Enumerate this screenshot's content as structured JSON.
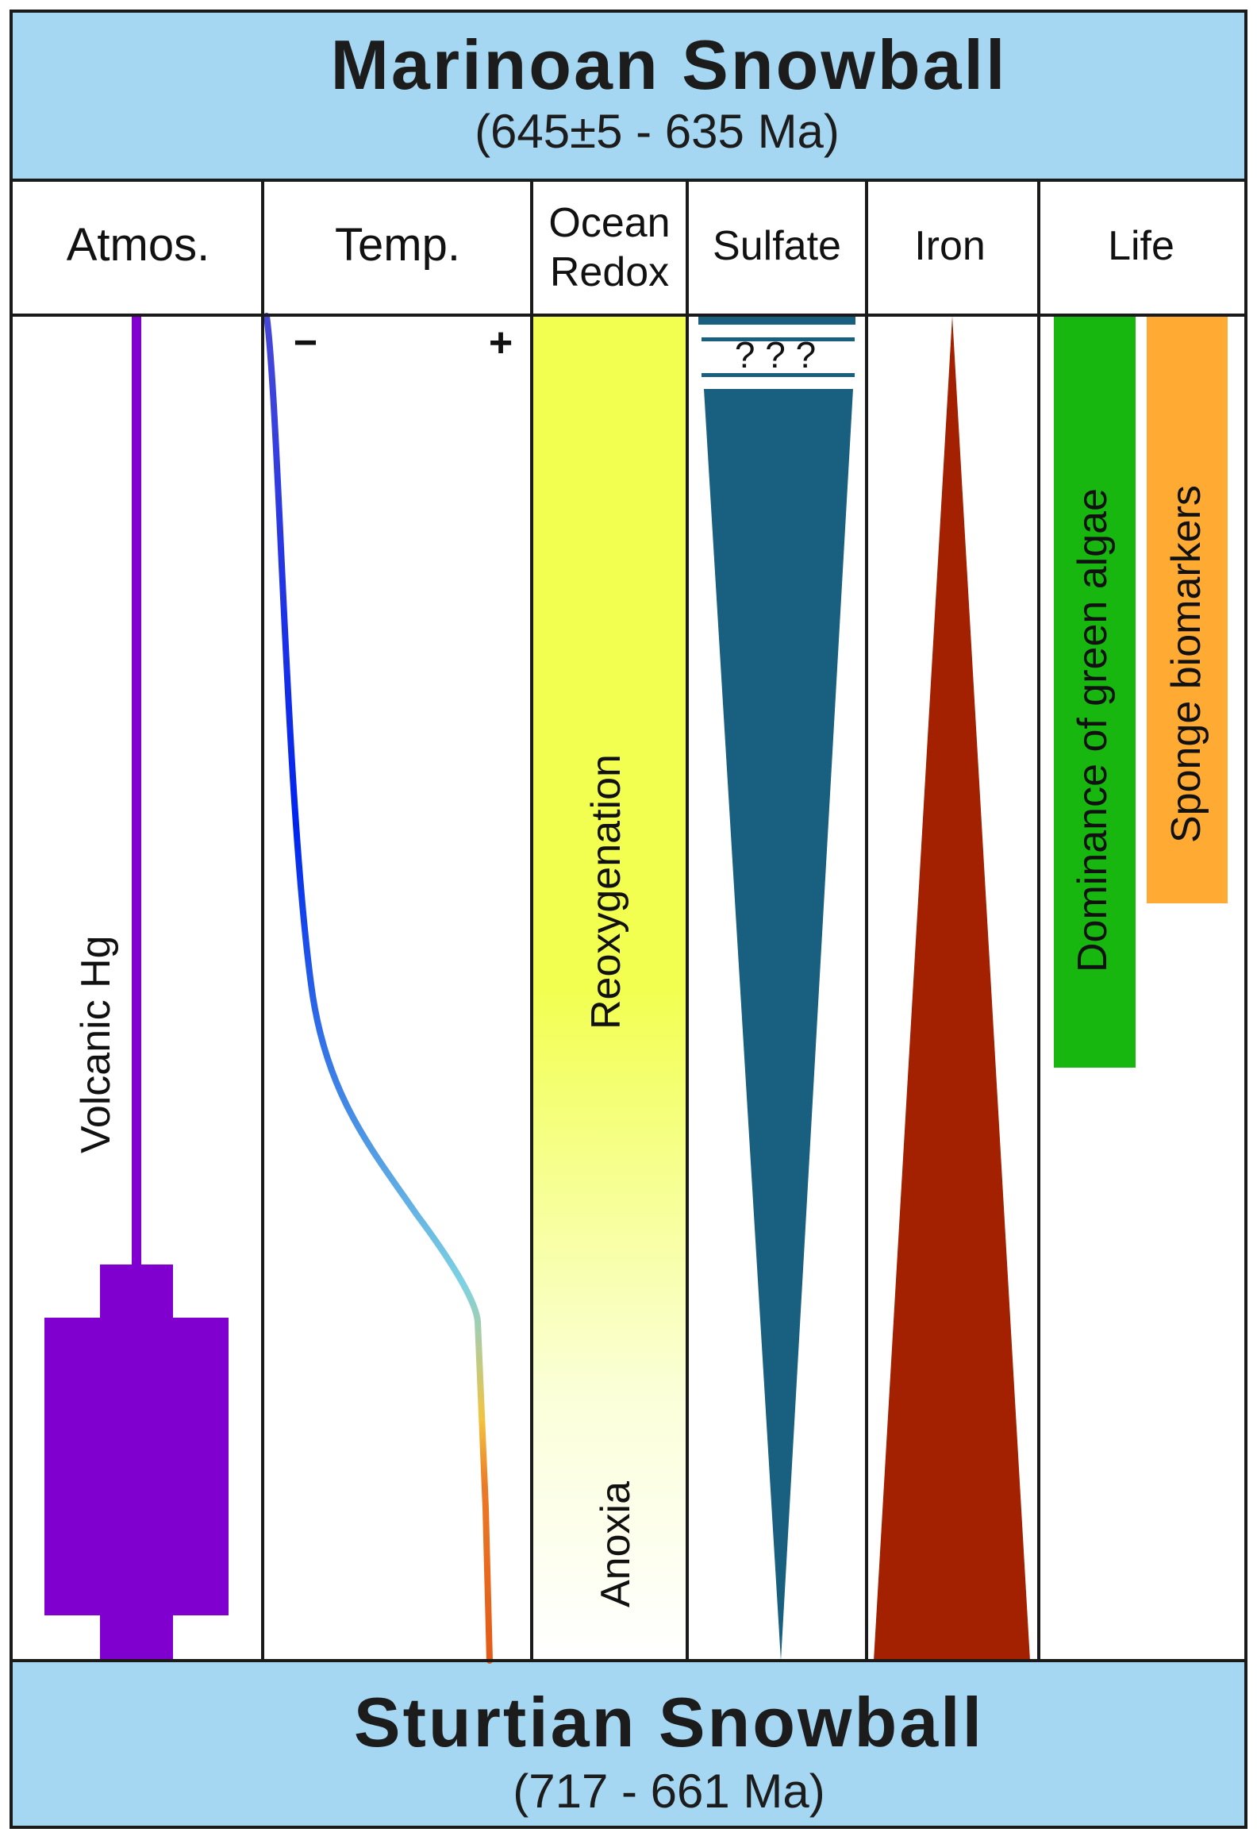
{
  "top_banner": {
    "title": "Marinoan Snowball",
    "subtitle": "(645±5 - 635 Ma)",
    "color": "#a6d7f2"
  },
  "bottom_banner": {
    "title": "Sturtian Snowball",
    "subtitle": "(717 - 661 Ma)",
    "color": "#a6d7f2"
  },
  "columns": {
    "atmos": {
      "header": "Atmos.",
      "label": "Volcanic Hg",
      "color": "#8000d0"
    },
    "temp": {
      "header": "Temp.",
      "minus": "−",
      "plus": "+",
      "minus_color": "#2e2ec8",
      "plus_color": "#e0651e"
    },
    "redox": {
      "header_line1": "Ocean",
      "header_line2": "Redox",
      "upper_label": "Reoxygenation",
      "lower_label": "Anoxia",
      "color": "#f2ff50"
    },
    "sulfate": {
      "header": "Sulfate",
      "question": "? ? ?",
      "color": "#196080"
    },
    "iron": {
      "header": "Iron",
      "color": "#a32000"
    },
    "life": {
      "header": "Life",
      "bars": [
        {
          "label": "Dominance of green algae",
          "color": "#17b70f"
        },
        {
          "label": "Sponge biomarkers",
          "color": "#ffab33"
        }
      ]
    }
  }
}
